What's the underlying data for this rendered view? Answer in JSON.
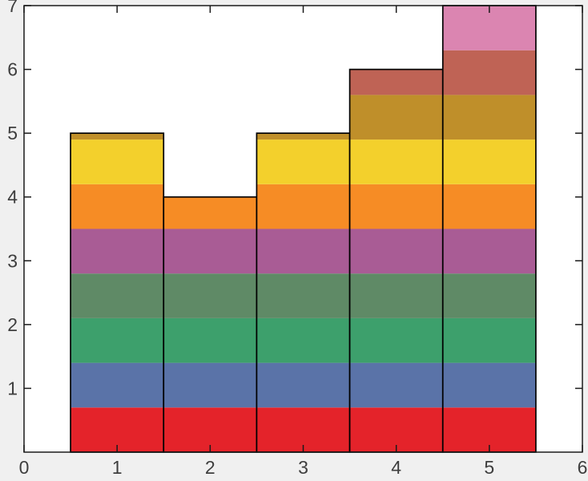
{
  "figure": {
    "background": "#f0f0f0",
    "plot_background": "#ffffff",
    "axis_color": "#1a1a1a",
    "tick_label_color": "#3e3e3e",
    "tick_label_font_size": 23,
    "tick_length": 9
  },
  "chart_data": {
    "type": "bar",
    "subtype": "histogram-with-stacked-color-bands",
    "title": "",
    "xlabel": "",
    "ylabel": "",
    "x": [
      1,
      2,
      3,
      4,
      5
    ],
    "values": [
      5,
      4,
      5,
      6,
      7
    ],
    "bar_width": 1,
    "bar_edge_color": "#000000",
    "band_height": 0.7,
    "bands": [
      {
        "name": "red",
        "hex": "#e4232a"
      },
      {
        "name": "slate-blue",
        "hex": "#5a73a8"
      },
      {
        "name": "green",
        "hex": "#3da06c"
      },
      {
        "name": "sage-green",
        "hex": "#5f8a66"
      },
      {
        "name": "mauve",
        "hex": "#a95c95"
      },
      {
        "name": "orange",
        "hex": "#f68c25"
      },
      {
        "name": "yellow",
        "hex": "#f3d02c"
      },
      {
        "name": "dark-gold",
        "hex": "#bf8f2a"
      },
      {
        "name": "brick",
        "hex": "#bf6355"
      },
      {
        "name": "pink",
        "hex": "#db85b1"
      }
    ],
    "xlim": [
      0,
      6
    ],
    "ylim": [
      0,
      7
    ],
    "x_tick_values": [
      0,
      1,
      2,
      3,
      4,
      5,
      6
    ],
    "x_tick_labels": [
      "0",
      "1",
      "2",
      "3",
      "4",
      "5",
      "6"
    ],
    "y_tick_values": [
      1,
      2,
      3,
      4,
      5,
      6,
      7
    ],
    "y_tick_labels": [
      "1",
      "2",
      "3",
      "4",
      "5",
      "6",
      "7"
    ],
    "grid": false,
    "legend": null,
    "box": true
  }
}
